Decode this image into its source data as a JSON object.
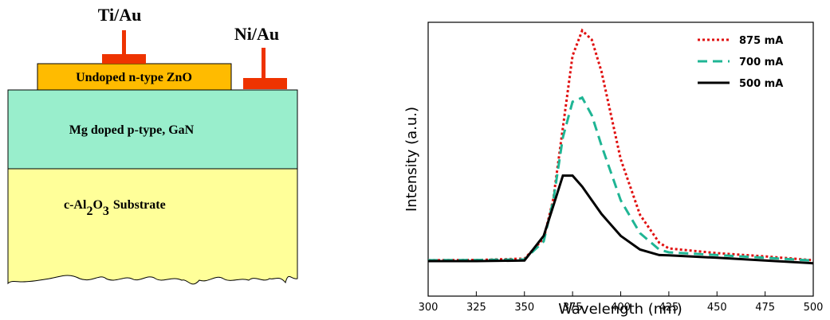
{
  "diagram": {
    "contacts": {
      "top": "Ti/Au",
      "side": "Ni/Au"
    },
    "layers": {
      "zno": "Undoped n-type ZnO",
      "gan": "Mg doped p-type, GaN",
      "substrate": [
        "c-Al",
        "2",
        "O",
        "3",
        "Substrate"
      ]
    }
  },
  "chart_data": {
    "type": "line",
    "xlabel": "Wavelength (nm)",
    "ylabel": "Intensity (a.u.)",
    "x": [
      300,
      325,
      350,
      360,
      365,
      370,
      375,
      380,
      385,
      390,
      400,
      410,
      420,
      425,
      450,
      475,
      500
    ],
    "series": [
      {
        "name": "875 mA",
        "color": "#e01010",
        "line_style": "dotted",
        "values": [
          13.1,
          13.2,
          13.7,
          21,
          35.5,
          61.6,
          87.8,
          97,
          93.6,
          82,
          50,
          29.7,
          19.5,
          17.4,
          15.7,
          14.5,
          13.1
        ]
      },
      {
        "name": "700 mA",
        "color": "#1fb594",
        "line_style": "dashed",
        "values": [
          13.1,
          13.2,
          13.4,
          20,
          35,
          58,
          71,
          72.5,
          66,
          55,
          35,
          23,
          17,
          16,
          15,
          14,
          13
        ]
      },
      {
        "name": "500 mA",
        "color": "#000000",
        "line_style": "solid",
        "values": [
          12.8,
          12.8,
          13,
          22,
          33,
          44,
          44,
          40,
          35,
          30,
          22,
          17,
          15,
          14.9,
          14,
          13,
          12
        ]
      }
    ],
    "xlim": [
      300,
      500
    ],
    "ylim": [
      0,
      100
    ],
    "xticks": [
      300,
      325,
      350,
      375,
      400,
      425,
      450,
      475,
      500
    ],
    "legend": "upper right"
  }
}
